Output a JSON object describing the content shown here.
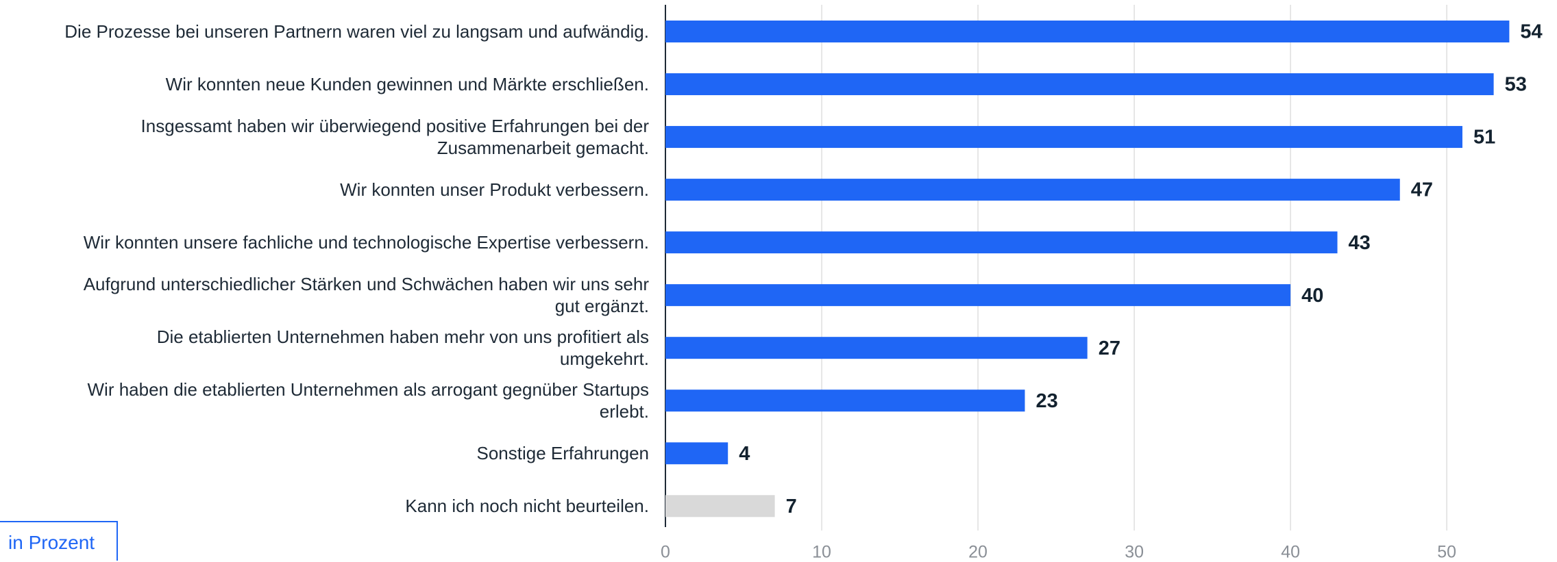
{
  "chart_data": {
    "type": "bar",
    "orientation": "horizontal",
    "categories": [
      "Die Prozesse bei unseren Partnern waren viel zu langsam und aufwändig.",
      "Wir konnten neue Kunden gewinnen und Märkte erschließen.",
      "Insgessamt haben wir überwiegend positive Erfahrungen bei der\nZusammenarbeit gemacht.",
      "Wir konnten unser Produkt verbessern.",
      "Wir konnten unsere fachliche und technologische Expertise verbessern.",
      "Aufgrund unterschiedlicher Stärken und Schwächen haben wir uns sehr\ngut ergänzt.",
      "Die etablierten Unternehmen haben mehr von uns profitiert als\numgekehrt.",
      "Wir haben die etablierten Unternehmen als arrogant gegnüber Startups\nerlebt.",
      "Sonstige Erfahrungen",
      "Kann ich noch nicht beurteilen."
    ],
    "values": [
      54,
      53,
      51,
      47,
      43,
      40,
      27,
      23,
      4,
      7
    ],
    "colors": [
      "#1f66f5",
      "#1f66f5",
      "#1f66f5",
      "#1f66f5",
      "#1f66f5",
      "#1f66f5",
      "#1f66f5",
      "#1f66f5",
      "#1f66f5",
      "#d9d9d9"
    ],
    "xlim": [
      0,
      56
    ],
    "xticks": [
      0,
      10,
      20,
      30,
      40,
      50
    ],
    "grid": true,
    "unit_label": "in Prozent"
  }
}
